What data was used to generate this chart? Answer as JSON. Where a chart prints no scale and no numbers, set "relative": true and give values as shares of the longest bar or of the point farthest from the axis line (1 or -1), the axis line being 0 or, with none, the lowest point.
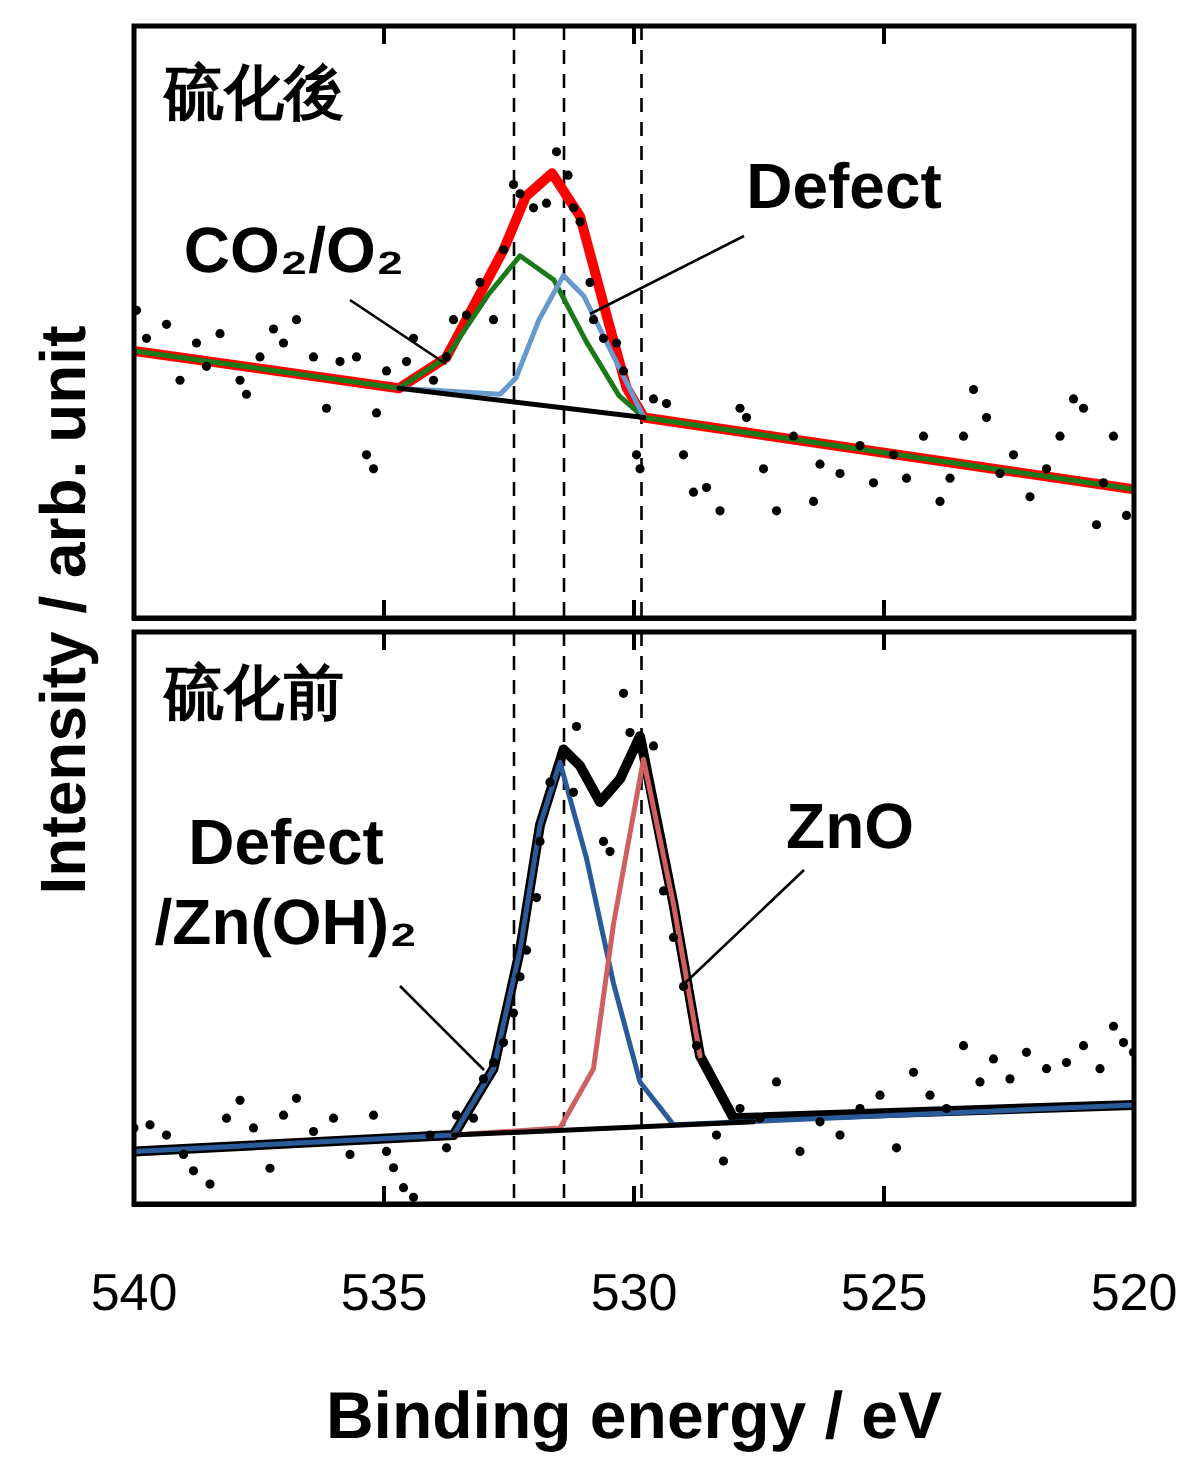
{
  "chart_data": [
    {
      "type": "line",
      "relative": true,
      "ylabel": "Intensity / arb. unit",
      "xlim": [
        540,
        520
      ],
      "xticks": [
        540,
        535,
        530,
        525,
        520
      ],
      "tick_labels": false,
      "annotations": [
        "硫化後",
        "CO₂/O₂",
        "Defect"
      ],
      "ref_lines": [
        {
          "axis": "x",
          "value": 532.4,
          "color": "#000000",
          "line_style": "dashed"
        },
        {
          "axis": "x",
          "value": 531.4,
          "color": "#000000",
          "line_style": "dashed"
        },
        {
          "axis": "x",
          "value": 529.85,
          "color": "#000000",
          "line_style": "dashed"
        }
      ],
      "series": [
        {
          "color": "#ff0000",
          "x": [
            540,
            534.7,
            533.76,
            532.6,
            532.16,
            531.64,
            531.08,
            530.55,
            530.15,
            529.8,
            520
          ],
          "values": [
            0.573,
            0.493,
            0.558,
            0.792,
            0.905,
            0.954,
            0.862,
            0.65,
            0.494,
            0.43,
            0.276
          ]
        },
        {
          "color": "#1a7a1a",
          "x": [
            540,
            534.7,
            533.76,
            532.9,
            532.28,
            531.6,
            530.96,
            530.3,
            529.8,
            520
          ],
          "values": [
            0.573,
            0.493,
            0.558,
            0.696,
            0.777,
            0.725,
            0.594,
            0.477,
            0.43,
            0.276
          ]
        },
        {
          "color": "#6699cc",
          "x": [
            534.7,
            532.68,
            532.36,
            531.9,
            531.41,
            531.0,
            530.68,
            529.8
          ],
          "values": [
            0.493,
            0.48,
            0.515,
            0.64,
            0.735,
            0.69,
            0.62,
            0.43
          ]
        },
        {
          "color": "#000000",
          "x": [
            534.7,
            529.8
          ],
          "values": [
            0.493,
            0.43
          ]
        },
        {
          "type": "scatter",
          "color": "#000000",
          "marker": "circle",
          "x": [
            539.95,
            539.75,
            539.35,
            539.08,
            538.75,
            538.55,
            538.28,
            537.88,
            537.75,
            537.48,
            537.21,
            537.01,
            536.75,
            536.41,
            536.15,
            535.88,
            535.55,
            535.35,
            535.21,
            535.15,
            534.95,
            534.55,
            534.41,
            534.01,
            533.75,
            533.61,
            533.35,
            533.08,
            532.81,
            532.61,
            532.41,
            532.28,
            532.01,
            531.75,
            531.55,
            531.32,
            531.21,
            531.08,
            530.88,
            530.81,
            530.61,
            530.35,
            530.21,
            529.95,
            529.88,
            529.61,
            529.35,
            529.01,
            528.81,
            528.55,
            528.28,
            527.88,
            527.75,
            527.41,
            527.15,
            526.81,
            526.41,
            526.28,
            525.88,
            525.48,
            525.21,
            524.81,
            524.55,
            524.21,
            523.88,
            523.68,
            523.41,
            523.21,
            522.95,
            522.68,
            522.41,
            522.08,
            521.75,
            521.48,
            521.21,
            521.01,
            520.75,
            520.61,
            520.41,
            520.15
          ],
          "values": [
            0.66,
            0.6,
            0.63,
            0.51,
            0.59,
            0.54,
            0.61,
            0.51,
            0.48,
            0.56,
            0.62,
            0.59,
            0.64,
            0.56,
            0.45,
            0.55,
            0.56,
            0.35,
            0.32,
            0.44,
            0.53,
            0.55,
            0.6,
            0.51,
            0.56,
            0.64,
            0.65,
            0.72,
            0.64,
            0.79,
            0.93,
            0.91,
            0.88,
            0.89,
            1,
            0.95,
            0.88,
            0.85,
            0.72,
            0.64,
            0.6,
            0.59,
            0.53,
            0.35,
            0.32,
            0.47,
            0.46,
            0.35,
            0.27,
            0.28,
            0.23,
            0.45,
            0.43,
            0.32,
            0.23,
            0.39,
            0.25,
            0.33,
            0.31,
            0.37,
            0.29,
            0.35,
            0.3,
            0.39,
            0.25,
            0.3,
            0.39,
            0.49,
            0.43,
            0.31,
            0.35,
            0.26,
            0.32,
            0.39,
            0.47,
            0.45,
            0.2,
            0.29,
            0.39,
            0.22
          ]
        }
      ]
    },
    {
      "type": "line",
      "relative": true,
      "xlabel": "Binding energy / eV",
      "xlim": [
        540,
        520
      ],
      "xticks": [
        540,
        535,
        530,
        525,
        520
      ],
      "tick_labels": "x",
      "annotations": [
        "硫化前",
        "Defect\n/Zn(OH)₂",
        "ZnO"
      ],
      "ref_lines": [
        {
          "axis": "x",
          "value": 532.4,
          "color": "#000000",
          "line_style": "dashed"
        },
        {
          "axis": "x",
          "value": 531.4,
          "color": "#000000",
          "line_style": "dashed"
        },
        {
          "axis": "x",
          "value": 529.85,
          "color": "#000000",
          "line_style": "dashed"
        }
      ],
      "series": [
        {
          "color": "#000000",
          "x": [
            540,
            533.61,
            532.81,
            532.28,
            531.88,
            531.41,
            531.08,
            530.68,
            530.28,
            529.88,
            529.21,
            528.68,
            528.01,
            520
          ],
          "values": [
            0.103,
            0.135,
            0.265,
            0.497,
            0.742,
            0.89,
            0.858,
            0.787,
            0.832,
            0.916,
            0.587,
            0.29,
            0.168,
            0.194
          ]
        },
        {
          "color": "#2a5a9a",
          "x": [
            540,
            533.61,
            532.81,
            532.28,
            531.88,
            531.48,
            530.95,
            530.41,
            529.88,
            529.21,
            520
          ],
          "values": [
            0.103,
            0.135,
            0.265,
            0.497,
            0.742,
            0.865,
            0.677,
            0.432,
            0.239,
            0.155,
            0.194
          ]
        },
        {
          "color": "#d06060",
          "x": [
            533.61,
            531.48,
            530.81,
            530.41,
            529.81,
            529.21,
            528.68
          ],
          "values": [
            0.135,
            0.149,
            0.265,
            0.548,
            0.871,
            0.587,
            0.29
          ]
        },
        {
          "color": "#000000",
          "x": [
            533.61,
            527.61
          ],
          "values": [
            0.135,
            0.161
          ]
        },
        {
          "type": "scatter",
          "color": "#000000",
          "marker": "circle",
          "x": [
            540,
            539.68,
            539.35,
            539.01,
            538.81,
            538.48,
            538.15,
            537.88,
            537.61,
            537.28,
            537.01,
            536.75,
            536.41,
            536.01,
            535.68,
            535.21,
            534.95,
            534.81,
            534.61,
            534.41,
            534.08,
            533.75,
            533.55,
            533.21,
            533.01,
            532.81,
            532.61,
            532.41,
            532.28,
            532.15,
            531.95,
            531.88,
            531.68,
            531.41,
            531.15,
            531.21,
            530.61,
            530.48,
            530.21,
            530.08,
            529.61,
            529.41,
            529.21,
            529.01,
            528.75,
            528.35,
            528.21,
            527.88,
            527.48,
            527.15,
            526.68,
            526.28,
            525.88,
            525.48,
            525.08,
            524.75,
            524.41,
            524.08,
            523.75,
            523.41,
            523.08,
            522.81,
            522.48,
            522.15,
            521.75,
            521.35,
            521.01,
            520.68,
            520.41,
            520.21,
            520.01
          ],
          "values": [
            0.149,
            0.155,
            0.135,
            0.097,
            0.065,
            0.039,
            0.168,
            0.203,
            0.149,
            0.07,
            0.174,
            0.207,
            0.142,
            0.168,
            0.097,
            0.174,
            0.103,
            0.071,
            0.032,
            0.013,
            0.135,
            0.11,
            0.174,
            0.168,
            0.245,
            0.277,
            0.316,
            0.374,
            0.445,
            0.497,
            0.6,
            0.71,
            0.826,
            0.89,
            0.935,
            0.806,
            0.71,
            0.69,
            1,
            0.923,
            0.897,
            0.613,
            0.522,
            0.426,
            0.31,
            0.135,
            0.084,
            0.187,
            0.168,
            0.239,
            0.103,
            0.161,
            0.135,
            0.187,
            0.213,
            0.11,
            0.258,
            0.213,
            0.187,
            0.31,
            0.239,
            0.284,
            0.245,
            0.297,
            0.265,
            0.277,
            0.31,
            0.265,
            0.348,
            0.316,
            0.297
          ]
        }
      ]
    }
  ]
}
